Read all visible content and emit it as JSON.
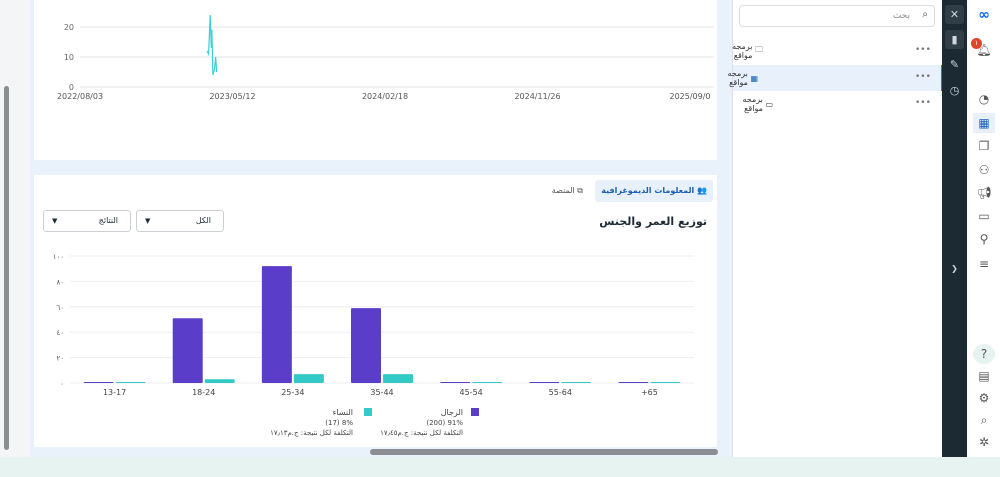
{
  "line_chart": {
    "type": "line",
    "yticks": [
      "0",
      "10",
      "20"
    ],
    "xticks": [
      "2022/08/03",
      "2023/05/12",
      "2024/02/18",
      "2024/11/26",
      "2025/09/0"
    ],
    "x": [
      "2023/03/26",
      "2023/03/29",
      "2023/03/31",
      "2023/04/01",
      "2023/04/03",
      "2023/04/04",
      "2023/04/06",
      "2023/04/09",
      "2023/04/11",
      "2023/04/13"
    ],
    "y": [
      12,
      11,
      20,
      24,
      13,
      19,
      4,
      6,
      10,
      5
    ],
    "color": "#3ccfcf",
    "ylim": [
      0,
      30
    ]
  },
  "tabs": [
    {
      "label": "المعلومات الديموغرافية",
      "icon": "people-icon"
    },
    {
      "label": "المنصة",
      "icon": "platform-icon"
    }
  ],
  "section_title": "توزيع العمر والجنس",
  "filters": [
    {
      "value": "الكل"
    },
    {
      "value": "النتائج"
    }
  ],
  "chart_data": {
    "type": "bar",
    "categories": [
      "13-17",
      "18-24",
      "25-34",
      "35-44",
      "45-54",
      "55-64",
      "+65"
    ],
    "yticks": [
      "٠",
      "٢٠",
      "٤٠",
      "٦٠",
      "٨٠",
      "١٠٠"
    ],
    "ylim": [
      0,
      100
    ],
    "series": [
      {
        "name": "الرجال",
        "color": "#5a3dc8",
        "values": [
          0.5,
          51,
          92,
          59,
          0.5,
          0.5,
          0.5
        ]
      },
      {
        "name": "النساء",
        "color": "#33c9c6",
        "values": [
          0.3,
          3,
          7,
          7,
          0.3,
          0.3,
          0.3
        ]
      }
    ],
    "legend": [
      {
        "name": "الرجال",
        "share": "91% (200)",
        "cost": "التكلفة لكل نتيجة: ج.م١٧٫٤٥"
      },
      {
        "name": "النساء",
        "share": "8% (17)",
        "cost": "التكلفة لكل نتيجة: ج.م١٧٫١٣"
      }
    ]
  },
  "panel": {
    "search_placeholder": "بحث",
    "items": [
      {
        "label": "برمجه مواقع",
        "icon": "folder-icon"
      },
      {
        "label": "برمجه مواقع",
        "icon": "grid-icon"
      },
      {
        "label": "برمجه مواقع",
        "icon": "window-icon"
      }
    ],
    "more": "•••"
  },
  "notifications": {
    "count": "١"
  }
}
